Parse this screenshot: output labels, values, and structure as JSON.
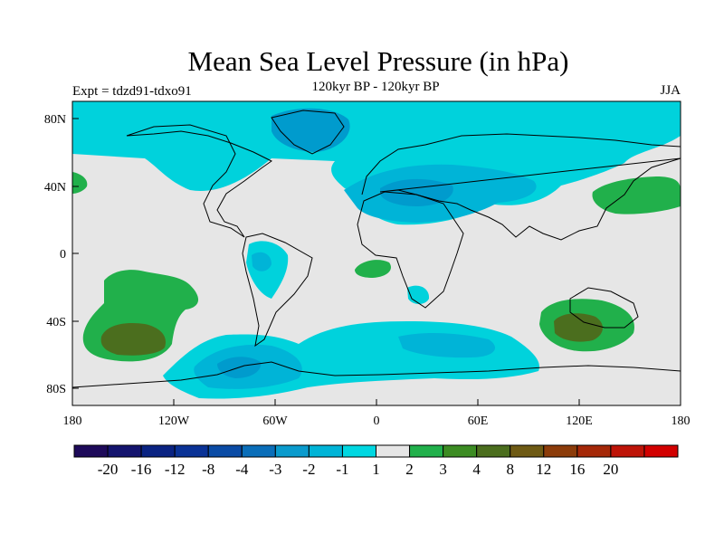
{
  "title": "Mean Sea Level Pressure (in hPa)",
  "subtitle": "120kyr BP - 120kyr BP",
  "left_label": "Expt = tdzd91-tdxo91",
  "right_label": "JJA",
  "map": {
    "lon_ticks": [
      "180",
      "120W",
      "60W",
      "0",
      "60E",
      "120E",
      "180"
    ],
    "lat_ticks": [
      "80N",
      "40N",
      "0",
      "40S",
      "80S"
    ],
    "background_color": "#e6e6e6",
    "regions": [
      {
        "name": "arctic-north-atlantic-low",
        "level": "-2",
        "color": "#00d2dc"
      },
      {
        "name": "greenland-low-core",
        "level": "-4",
        "color": "#009bcd"
      },
      {
        "name": "eurasia-low",
        "level": "-3",
        "color": "#00b4d7"
      },
      {
        "name": "southern-ocean-low",
        "level": "-2",
        "color": "#00d2dc"
      },
      {
        "name": "south-pacific-high",
        "level": "2",
        "color": "#21b04b"
      },
      {
        "name": "south-pacific-high-core",
        "level": "4",
        "color": "#4b6e1e"
      },
      {
        "name": "australia-high",
        "level": "2",
        "color": "#21b04b"
      },
      {
        "name": "australia-high-core",
        "level": "4",
        "color": "#4b6e1e"
      },
      {
        "name": "north-west-pacific-high",
        "level": "2",
        "color": "#21b04b"
      },
      {
        "name": "gulf-of-guinea-high",
        "level": "2",
        "color": "#21b04b"
      }
    ]
  },
  "colorbar": {
    "labels": [
      "-20",
      "-16",
      "-12",
      "-8",
      "-4",
      "-3",
      "-2",
      "-1",
      "1",
      "2",
      "3",
      "4",
      "8",
      "12",
      "16",
      "20"
    ],
    "colors": [
      "#1e0a5a",
      "#14146e",
      "#0a2382",
      "#0a3296",
      "#0a4ba5",
      "#0a6eb9",
      "#0a9bcd",
      "#00b4d7",
      "#00d7e1",
      "#e6e6e6",
      "#21b04b",
      "#3c8c23",
      "#4b6e1e",
      "#6e5a14",
      "#8c3c0a",
      "#a52808",
      "#be1408",
      "#d20000"
    ]
  }
}
